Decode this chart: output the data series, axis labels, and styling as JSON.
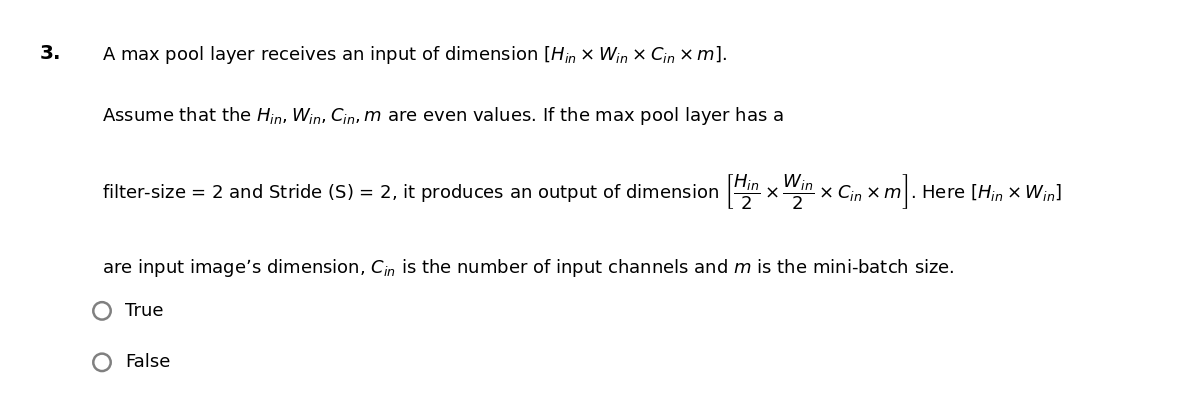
{
  "background_color": "#ffffff",
  "fig_width": 12.0,
  "fig_height": 3.96,
  "question_number": "3.",
  "line1": "A max pool layer receives an input of dimension $[H_{in} \\times W_{in} \\times C_{in} \\times m]$.",
  "line2": "Assume that the $H_{in}, W_{in}, C_{in}, m$ are even values. If the max pool layer has a",
  "line3": "filter-size = 2 and Stride (S) = 2, it produces an output of dimension $\\left[\\dfrac{H_{in}}{2} \\times \\dfrac{W_{in}}{2} \\times C_{in} \\times m\\right]$. Here $[H_{in} \\times W_{in}]$",
  "line4": "are input image’s dimension, $C_{in}$ is the number of input channels and $m$ is the mini-batch size.",
  "option_true": "True",
  "option_false": "False",
  "text_color": "#000000",
  "circle_color": "#808080",
  "font_size": 13.0,
  "number_font_size": 14.5
}
